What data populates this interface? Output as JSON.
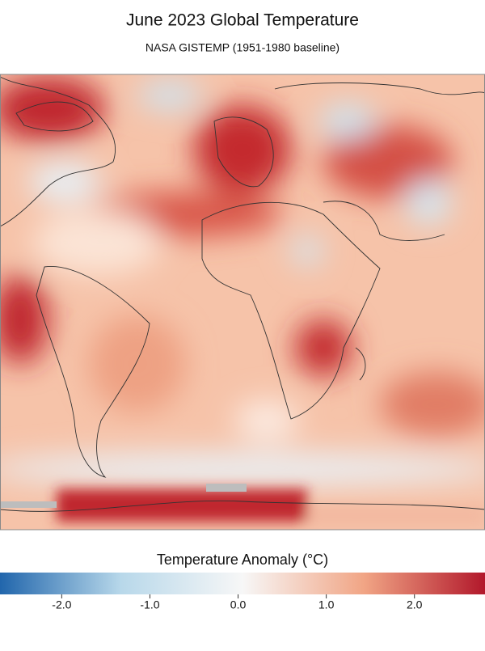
{
  "title": "June 2023 Global Temperature",
  "subtitle": "NASA GISTEMP (1951-1980 baseline)",
  "colorbar": {
    "label": "Temperature Anomaly (°C)",
    "range": [
      -2.7,
      2.8
    ],
    "colors": [
      "#2166ac",
      "#b8d8ea",
      "#f7f7f7",
      "#f1a585",
      "#b2182b"
    ],
    "ticks": [
      {
        "value": -2,
        "label": "-2.0"
      },
      {
        "value": -1,
        "label": "-1.0"
      },
      {
        "value": 0,
        "label": "0.0"
      },
      {
        "value": 1,
        "label": "1.0"
      },
      {
        "value": 2,
        "label": "2.0"
      }
    ]
  }
}
